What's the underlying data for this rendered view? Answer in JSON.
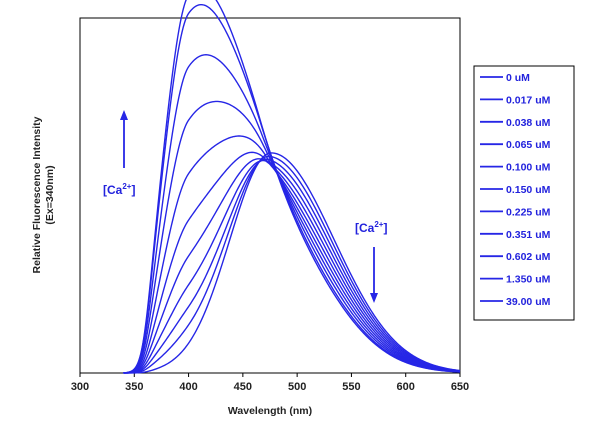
{
  "chart_data": {
    "type": "line",
    "xlabel": "Wavelength (nm)",
    "ylabel_line1": "Relative Fluorescence Intensity",
    "ylabel_line2": "(Ex=340nm)",
    "xlim": [
      300,
      650
    ],
    "ylim": [
      0,
      1
    ],
    "x_ticks": [
      300,
      350,
      400,
      450,
      500,
      550,
      600,
      650
    ],
    "grid": false,
    "legend_position": "right",
    "annotations": {
      "up_label_main": "[Ca",
      "up_label_sup": "2+",
      "up_label_end": "]",
      "down_label_main": "[Ca",
      "down_label_sup": "2+",
      "down_label_end": "]"
    },
    "line_color": "#2626e6",
    "series": [
      {
        "name": "0 uM",
        "short": {
          "amp": 0.0,
          "center": 400,
          "sl": 24,
          "sr": 42
        },
        "long": {
          "amp": 0.62,
          "center": 476,
          "sl": 38,
          "sr": 58
        }
      },
      {
        "name": "0.017 uM",
        "short": {
          "amp": 0.05,
          "center": 400,
          "sl": 24,
          "sr": 42
        },
        "long": {
          "amp": 0.6,
          "center": 475,
          "sl": 38,
          "sr": 58
        }
      },
      {
        "name": "0.038 uM",
        "short": {
          "amp": 0.1,
          "center": 400,
          "sl": 24,
          "sr": 42
        },
        "long": {
          "amp": 0.58,
          "center": 474,
          "sl": 38,
          "sr": 58
        }
      },
      {
        "name": "0.065 uM",
        "short": {
          "amp": 0.16,
          "center": 400,
          "sl": 24,
          "sr": 42
        },
        "long": {
          "amp": 0.56,
          "center": 473,
          "sl": 38,
          "sr": 58
        }
      },
      {
        "name": "0.100 uM",
        "short": {
          "amp": 0.24,
          "center": 400,
          "sl": 24,
          "sr": 42
        },
        "long": {
          "amp": 0.54,
          "center": 472,
          "sl": 38,
          "sr": 58
        }
      },
      {
        "name": "0.150 uM",
        "short": {
          "amp": 0.34,
          "center": 400,
          "sl": 24,
          "sr": 42
        },
        "long": {
          "amp": 0.52,
          "center": 471,
          "sl": 38,
          "sr": 58
        }
      },
      {
        "name": "0.225 uM",
        "short": {
          "amp": 0.47,
          "center": 400,
          "sl": 24,
          "sr": 42
        },
        "long": {
          "amp": 0.5,
          "center": 470,
          "sl": 38,
          "sr": 58
        }
      },
      {
        "name": "0.351 uM",
        "short": {
          "amp": 0.62,
          "center": 400,
          "sl": 24,
          "sr": 42
        },
        "long": {
          "amp": 0.48,
          "center": 469,
          "sl": 38,
          "sr": 58
        }
      },
      {
        "name": "0.602 uM",
        "short": {
          "amp": 0.77,
          "center": 400,
          "sl": 24,
          "sr": 42
        },
        "long": {
          "amp": 0.46,
          "center": 468,
          "sl": 38,
          "sr": 58
        }
      },
      {
        "name": "1.350 uM",
        "short": {
          "amp": 0.92,
          "center": 400,
          "sl": 24,
          "sr": 42
        },
        "long": {
          "amp": 0.44,
          "center": 467,
          "sl": 38,
          "sr": 58
        }
      },
      {
        "name": "39.00 uM",
        "short": {
          "amp": 0.97,
          "center": 400,
          "sl": 24,
          "sr": 42
        },
        "long": {
          "amp": 0.43,
          "center": 466,
          "sl": 38,
          "sr": 58
        }
      }
    ]
  }
}
